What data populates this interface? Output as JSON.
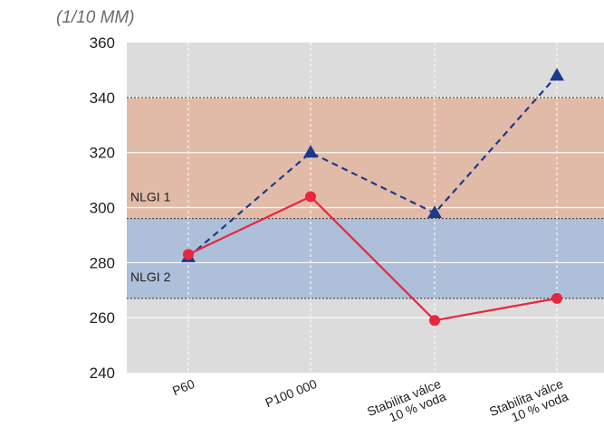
{
  "chart_data": {
    "type": "line",
    "unit_label": "(1/10 MM)",
    "categories": [
      "P60",
      "P100 000",
      "Stabilita válce 10 % voda",
      "Stabilita válce 10 % voda"
    ],
    "category_lines": [
      [
        "P60"
      ],
      [
        "P100 000"
      ],
      [
        "Stabilita válce",
        "10 % voda"
      ],
      [
        "Stabilita válce",
        "10 % voda"
      ]
    ],
    "series": [
      {
        "values": [
          282,
          320,
          298,
          348
        ],
        "color": "#1b3a8c",
        "style": "dashed",
        "marker": "triangle"
      },
      {
        "values": [
          283,
          304,
          259,
          267
        ],
        "color": "#e8273f",
        "style": "solid",
        "marker": "circle"
      }
    ],
    "ylim": [
      240,
      360
    ],
    "yticks": [
      240,
      260,
      280,
      300,
      320,
      340,
      360
    ],
    "bands": [
      {
        "label": "NLGI 1",
        "from": 296,
        "to": 340,
        "color": "#e2bba8"
      },
      {
        "label": "NLGI 2",
        "from": 267,
        "to": 296,
        "color": "#aebfd9"
      }
    ],
    "background": "#dcdcdc",
    "grid": true
  }
}
